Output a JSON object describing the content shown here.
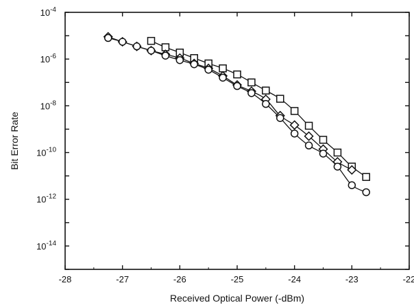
{
  "chart_data": {
    "type": "scatter",
    "title": "",
    "xlabel": "Received Optical Power (-dBm)",
    "ylabel": "Bit Error Rate",
    "xlim": [
      -28,
      -22
    ],
    "ylim_exponent": [
      -15,
      -4
    ],
    "yscale": "log",
    "grid": false,
    "legend": "none",
    "x_ticks": [
      -28,
      -27,
      -26,
      -25,
      -24,
      -23,
      -22
    ],
    "y_tick_exponents": [
      -4,
      -6,
      -8,
      -10,
      -12,
      -14
    ],
    "series": [
      {
        "marker": "square",
        "x": [
          -26.5,
          -26.25,
          -26.0,
          -25.75,
          -25.5,
          -25.25,
          -25.0,
          -24.75,
          -24.5,
          -24.25,
          -24.0,
          -23.75,
          -23.5,
          -23.25,
          -23.0,
          -22.75
        ],
        "y": [
          6e-06,
          3.2e-06,
          1.9e-06,
          1.1e-06,
          6.5e-07,
          4e-07,
          2.2e-07,
          1e-07,
          4.5e-08,
          2e-08,
          6e-09,
          1.4e-09,
          3.5e-10,
          1e-10,
          2.5e-11,
          9e-12
        ]
      },
      {
        "marker": "diamond",
        "x": [
          -27.25,
          -27.0,
          -26.75,
          -26.5,
          -26.25,
          -26.0,
          -25.75,
          -25.5,
          -25.25,
          -25.0,
          -24.75,
          -24.5,
          -24.25,
          -24.0,
          -23.75,
          -23.5,
          -23.25,
          -23.0
        ],
        "y": [
          9e-06,
          5.5e-06,
          3.5e-06,
          2.3e-06,
          1.6e-06,
          1.1e-06,
          6.5e-07,
          4e-07,
          1.9e-07,
          7.8e-08,
          4.2e-08,
          1.9e-08,
          3.8e-09,
          1.5e-09,
          5e-10,
          1.4e-10,
          4e-11,
          1.8e-11
        ]
      },
      {
        "marker": "circle",
        "x": [
          -27.25,
          -27.0,
          -26.75,
          -26.5,
          -26.25,
          -26.0,
          -25.75,
          -25.5,
          -25.25,
          -25.0,
          -24.75,
          -24.5,
          -24.25,
          -24.0,
          -23.75,
          -23.5,
          -23.25,
          -23.0,
          -22.75
        ],
        "y": [
          8e-06,
          5.5e-06,
          3.5e-06,
          2.3e-06,
          1.4e-06,
          9e-07,
          6e-07,
          3.5e-07,
          1.6e-07,
          7e-08,
          3.5e-08,
          1.2e-08,
          3e-09,
          6.5e-10,
          2e-10,
          9e-11,
          2.5e-11,
          4e-12,
          2e-12
        ]
      }
    ]
  }
}
